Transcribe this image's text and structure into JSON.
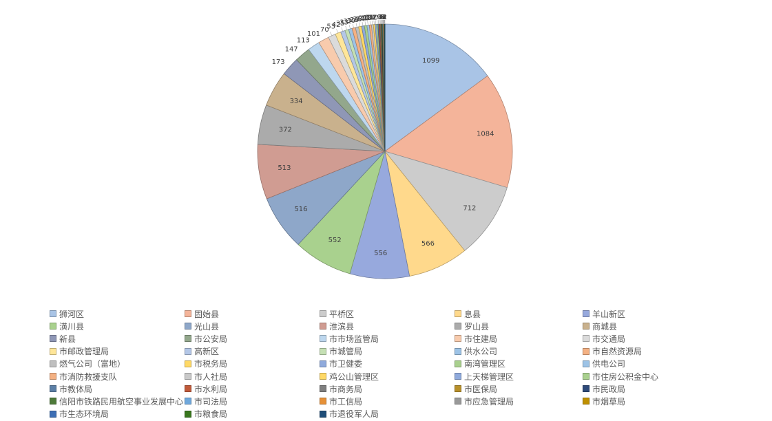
{
  "chart_data": {
    "type": "pie",
    "title": "",
    "categories": [
      "狮河区",
      "固始县",
      "平桥区",
      "息县",
      "羊山新区",
      "潢川县",
      "光山县",
      "淮滨县",
      "罗山县",
      "商城县",
      "新县",
      "市公安局",
      "市市场监管局",
      "市住建局",
      "市交通局",
      "市邮政管理局",
      "高新区",
      "市城管局",
      "供水公司",
      "市自然资源局",
      "燃气公司（富地）",
      "市税务局",
      "市卫健委",
      "南湾管理区",
      "供电公司",
      "市消防救援支队",
      "市人社局",
      "鸡公山管理区",
      "上天梯管理区",
      "市住房公积金中心",
      "市教体局",
      "市水利局",
      "市商务局",
      "市医保局",
      "市民政局",
      "信阳市铁路民用航空事业发展中心",
      "市司法局",
      "市工信局",
      "市应急管理局",
      "市烟草局",
      "市生态环境局",
      "市粮食局",
      "市退役军人局"
    ],
    "values": [
      1099,
      1084,
      712,
      566,
      556,
      552,
      516,
      513,
      372,
      334,
      173,
      147,
      113,
      101,
      70,
      53,
      42,
      35,
      33,
      32,
      30,
      28,
      26,
      24,
      22,
      20,
      18,
      16,
      14,
      12,
      10,
      9,
      8,
      7,
      6,
      5,
      5,
      4,
      3,
      3,
      2,
      2,
      1
    ],
    "value_labels": [
      "1099",
      "1084",
      "712",
      "566",
      "556",
      "552",
      "516",
      "513",
      "372",
      "334",
      "173",
      "147",
      "113",
      "101",
      "70",
      "53",
      "42",
      "35",
      "33",
      "32",
      "30",
      "28",
      "26",
      "24",
      "22",
      "20",
      "18",
      "16",
      "14",
      "12",
      "10",
      "9",
      "8",
      "7",
      "6",
      "5",
      "5",
      "4",
      "3",
      "3",
      "2",
      "2",
      "1"
    ],
    "colors": [
      "#a9c4e6",
      "#f4b49a",
      "#cccccc",
      "#ffd98c",
      "#97a9dd",
      "#a9d18e",
      "#8ea7c9",
      "#d09c92",
      "#ababab",
      "#c9b18d",
      "#8f97b6",
      "#93a78c",
      "#bdd7ee",
      "#f8cbad",
      "#dbdbdb",
      "#ffe699",
      "#b4c7e7",
      "#c5e0b4",
      "#9dc3e6",
      "#f4b183",
      "#bfbfbf",
      "#ffd966",
      "#8faadc",
      "#a9d08e",
      "#9dc3e6",
      "#f4b183",
      "#c9c9c9",
      "#ffd966",
      "#8faadc",
      "#a9d08e",
      "#5b7fa6",
      "#c05a3a",
      "#7f7f7f",
      "#b8902a",
      "#2e4a7a",
      "#4e7a3a",
      "#6fa8dc",
      "#e69138",
      "#999999",
      "#bf9000",
      "#3d6fb5",
      "#38761d",
      "#1f4e79"
    ],
    "legend_position": "bottom"
  }
}
